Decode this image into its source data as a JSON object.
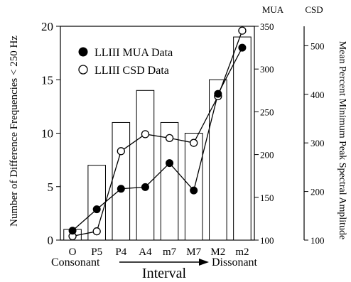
{
  "chart_data": {
    "type": "bar+line",
    "categories": [
      "O",
      "P5",
      "P4",
      "A4",
      "m7",
      "M7",
      "M2",
      "m2"
    ],
    "bars": {
      "name": "Number of Difference Frequencies < 250 Hz",
      "values": [
        1,
        7,
        11,
        14,
        11,
        10,
        15,
        19
      ]
    },
    "series": [
      {
        "name": "LLIII MUA Data",
        "axis": "MUA",
        "marker": "filled-circle",
        "values": [
          111,
          136,
          160,
          162,
          190,
          158,
          271,
          325
        ]
      },
      {
        "name": "LLIII CSD Data",
        "axis": "CSD",
        "marker": "open-circle",
        "values": [
          108,
          118,
          283,
          318,
          310,
          300,
          396,
          531
        ]
      }
    ],
    "yleft": {
      "label": "Number of Difference Frequencies < 250 Hz",
      "lim": [
        0,
        20
      ],
      "ticks": [
        0,
        5,
        10,
        15,
        20
      ]
    },
    "yright_mua": {
      "title": "MUA",
      "lim": [
        100,
        350
      ],
      "ticks": [
        100,
        150,
        200,
        250,
        300,
        350
      ]
    },
    "yright_csd": {
      "title": "CSD",
      "label": "Mean Percent Minimum Peak Spectral Amplitude",
      "lim": [
        100,
        540
      ],
      "ticks": [
        100,
        200,
        300,
        400,
        500
      ]
    },
    "xlabel": "Interval",
    "xaxis_left_note": "Consonant",
    "xaxis_right_note": "Dissonant",
    "legend_position": "top-left",
    "colors": {
      "ink": "#000000",
      "bar_fill": "#ffffff",
      "background": "#ffffff"
    }
  }
}
